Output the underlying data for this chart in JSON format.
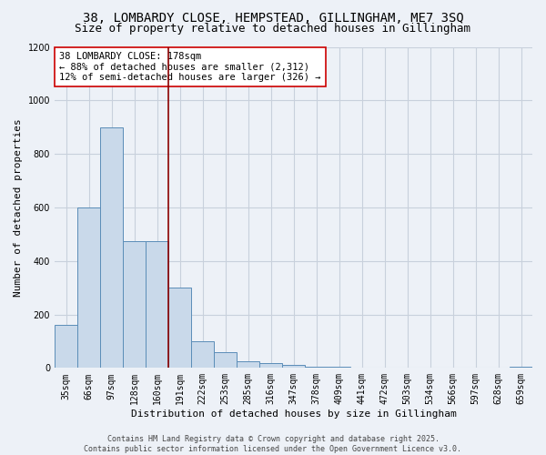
{
  "title_line1": "38, LOMBARDY CLOSE, HEMPSTEAD, GILLINGHAM, ME7 3SQ",
  "title_line2": "Size of property relative to detached houses in Gillingham",
  "xlabel": "Distribution of detached houses by size in Gillingham",
  "ylabel": "Number of detached properties",
  "bar_labels": [
    "35sqm",
    "66sqm",
    "97sqm",
    "128sqm",
    "160sqm",
    "191sqm",
    "222sqm",
    "253sqm",
    "285sqm",
    "316sqm",
    "347sqm",
    "378sqm",
    "409sqm",
    "441sqm",
    "472sqm",
    "503sqm",
    "534sqm",
    "566sqm",
    "597sqm",
    "628sqm",
    "659sqm"
  ],
  "bar_values": [
    160,
    600,
    900,
    475,
    475,
    300,
    100,
    60,
    25,
    18,
    10,
    5,
    4,
    0,
    0,
    0,
    0,
    0,
    0,
    0,
    4
  ],
  "bar_color": "#c9d9ea",
  "bar_edge_color": "#5b8db8",
  "grid_color": "#c8d0dc",
  "background_color": "#edf1f7",
  "vline_x": 4.5,
  "vline_color": "#8b0000",
  "annotation_title": "38 LOMBARDY CLOSE: 178sqm",
  "annotation_line1": "← 88% of detached houses are smaller (2,312)",
  "annotation_line2": "12% of semi-detached houses are larger (326) →",
  "annotation_box_color": "#ffffff",
  "annotation_box_edge": "#cc0000",
  "ylim": [
    0,
    1200
  ],
  "yticks": [
    0,
    200,
    400,
    600,
    800,
    1000,
    1200
  ],
  "footer_line1": "Contains HM Land Registry data © Crown copyright and database right 2025.",
  "footer_line2": "Contains public sector information licensed under the Open Government Licence v3.0.",
  "title_fontsize": 10,
  "subtitle_fontsize": 9,
  "axis_label_fontsize": 8,
  "tick_fontsize": 7,
  "annotation_fontsize": 7.5,
  "footer_fontsize": 6
}
